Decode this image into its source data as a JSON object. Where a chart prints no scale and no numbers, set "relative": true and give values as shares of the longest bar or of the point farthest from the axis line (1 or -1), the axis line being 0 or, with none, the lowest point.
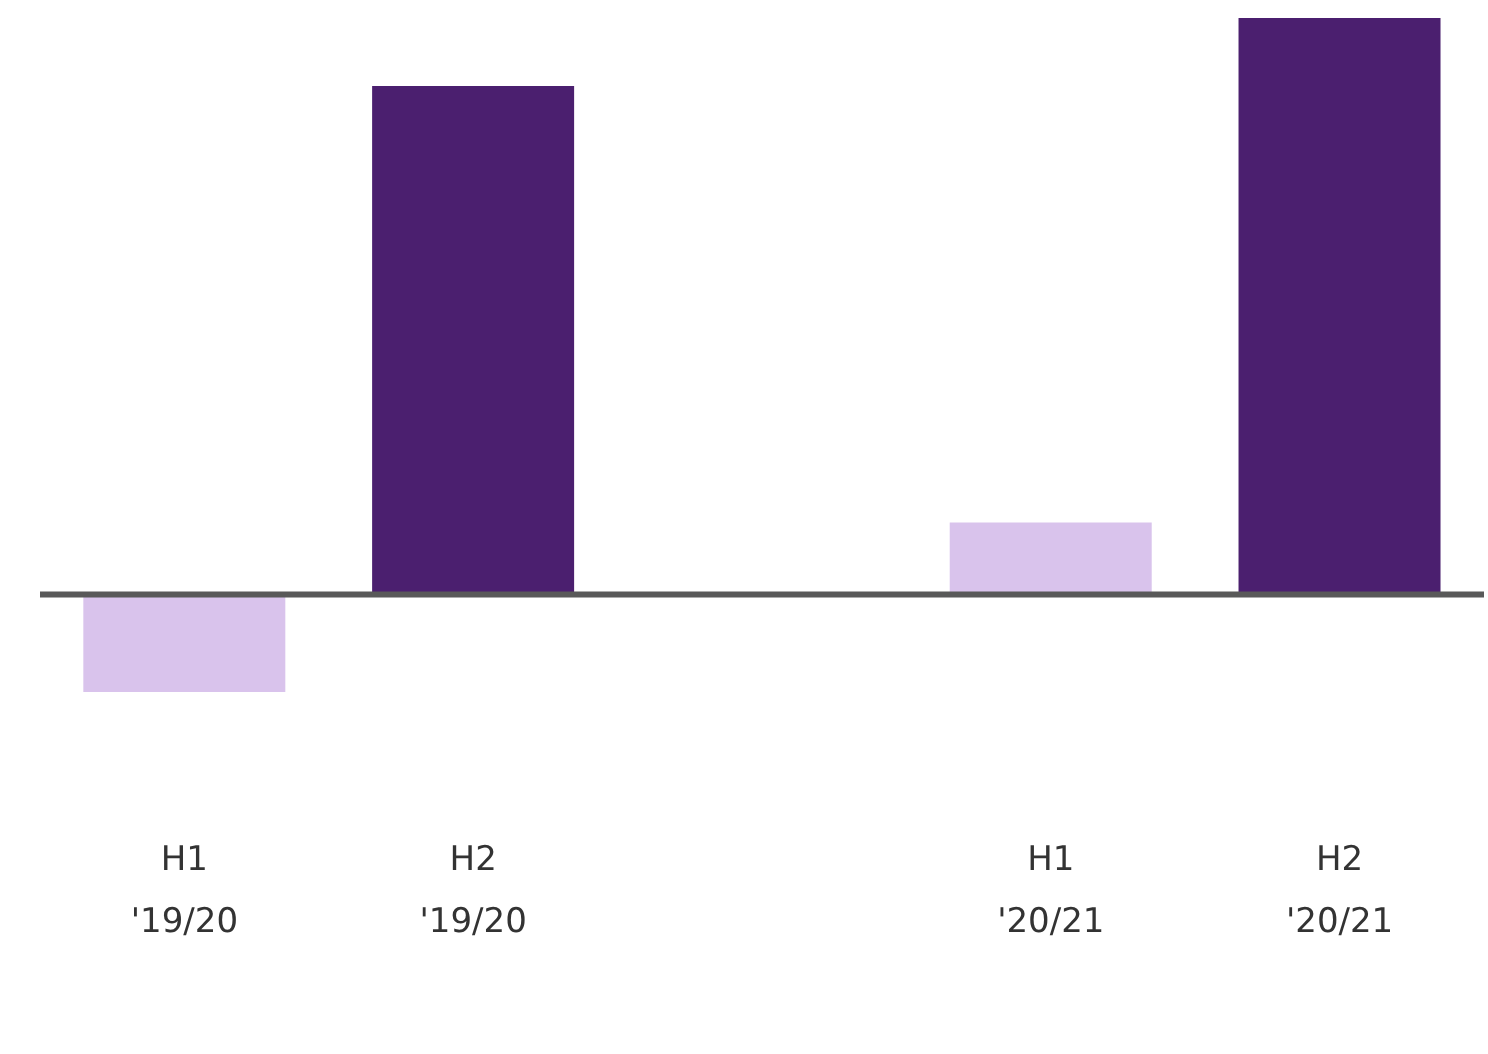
{
  "chart_data": {
    "type": "bar",
    "relative": true,
    "categories": [
      "H1\n'19/20",
      "H2\n'19/20",
      null,
      "H1\n'20/21",
      "H2\n'20/21"
    ],
    "values": [
      -0.169,
      0.882,
      null,
      0.125,
      1
    ],
    "colors": [
      "#d9c3ec",
      "#4b1f6f",
      null,
      "#d9c3ec",
      "#4b1f6f"
    ]
  }
}
